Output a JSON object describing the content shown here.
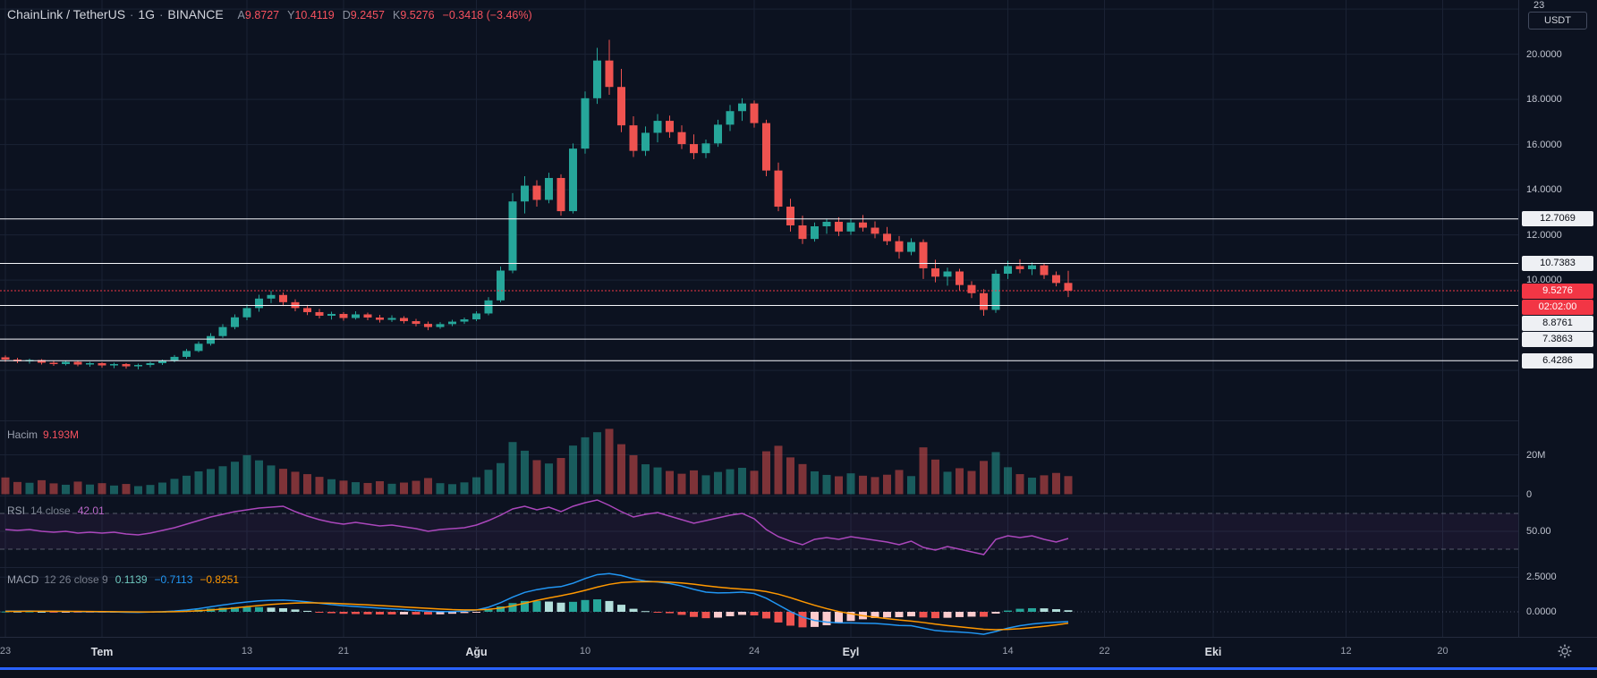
{
  "legend": {
    "symbol": "ChainLink / TetherUS",
    "dot": "·",
    "interval": "1G",
    "exchange": "BINANCE",
    "o_label": "A",
    "o": "9.8727",
    "h_label": "Y",
    "h": "10.4119",
    "l_label": "D",
    "l": "9.2457",
    "c_label": "K",
    "c": "9.5276",
    "change": "−0.3418 (−3.46%)"
  },
  "volume_legend": {
    "label": "Hacim",
    "value": "9.193M"
  },
  "rsi_legend": {
    "label": "RSI",
    "params": "14 close",
    "value": "42.01"
  },
  "macd_legend": {
    "label": "MACD",
    "params": "12 26 close 9",
    "hist": "0.1139",
    "macd": "−0.7113",
    "signal": "−0.8251"
  },
  "price_axis": {
    "top_label": "23",
    "currency": "USDT",
    "ticks": [
      {
        "v": 20,
        "label": "20.0000"
      },
      {
        "v": 18,
        "label": "18.0000"
      },
      {
        "v": 16,
        "label": "16.0000"
      },
      {
        "v": 14,
        "label": "14.0000"
      },
      {
        "v": 12,
        "label": "12.0000"
      },
      {
        "v": 10,
        "label": "10.0000"
      }
    ]
  },
  "sub_axes": {
    "volume": [
      {
        "v": 20,
        "label": "20M"
      },
      {
        "v": 0,
        "label": "0"
      }
    ],
    "rsi": [
      {
        "v": 50,
        "label": "50.00"
      }
    ],
    "macd": [
      {
        "v": 2.5,
        "label": "2.5000"
      },
      {
        "v": 0,
        "label": "0.0000"
      }
    ]
  },
  "colors": {
    "up": "#26a69a",
    "down": "#ef5350",
    "vol_up": "rgba(38,166,154,0.5)",
    "vol_down": "rgba(239,83,80,0.5)",
    "rsi": "#ab47bc",
    "rsi_band_fill": "rgba(171,71,188,0.08)",
    "macd_line": "#2196f3",
    "signal_line": "#ff9800",
    "hist_pos": "#26a69a",
    "hist_pos_weak": "#b2dfdb",
    "hist_neg": "#ef5350",
    "hist_neg_weak": "#fccbcd",
    "level_line": "#f5f6fa",
    "last_price": "#f23645",
    "grid": "#1a2234",
    "blue_strip": "#2962ff"
  },
  "chart_data": {
    "type": "candlestick",
    "title": "ChainLink / TetherUS",
    "exchange": "BINANCE",
    "interval": "1G",
    "note": "OHLCV per bar [open, high, low, close, volume_millions], daily bars Jun 23 - Sep 19",
    "candles": [
      [
        6.58,
        6.66,
        6.38,
        6.48,
        8.5
      ],
      [
        6.48,
        6.56,
        6.32,
        6.4,
        6.2
      ],
      [
        6.4,
        6.52,
        6.3,
        6.46,
        5.8
      ],
      [
        6.46,
        6.5,
        6.26,
        6.34,
        7.1
      ],
      [
        6.34,
        6.44,
        6.2,
        6.28,
        5.5
      ],
      [
        6.28,
        6.42,
        6.22,
        6.38,
        4.8
      ],
      [
        6.38,
        6.42,
        6.18,
        6.26,
        6.4
      ],
      [
        6.26,
        6.38,
        6.16,
        6.32,
        4.9
      ],
      [
        6.32,
        6.36,
        6.12,
        6.22,
        5.6
      ],
      [
        6.22,
        6.34,
        6.1,
        6.28,
        4.4
      ],
      [
        6.28,
        6.32,
        6.08,
        6.18,
        5.2
      ],
      [
        6.18,
        6.3,
        6.05,
        6.24,
        4.1
      ],
      [
        6.24,
        6.38,
        6.14,
        6.32,
        4.7
      ],
      [
        6.32,
        6.48,
        6.24,
        6.42,
        5.9
      ],
      [
        6.42,
        6.68,
        6.36,
        6.6,
        7.8
      ],
      [
        6.6,
        6.95,
        6.52,
        6.86,
        9.4
      ],
      [
        6.86,
        7.28,
        6.8,
        7.18,
        11.6
      ],
      [
        7.18,
        7.65,
        7.1,
        7.52,
        12.8
      ],
      [
        7.52,
        8.05,
        7.44,
        7.92,
        14.2
      ],
      [
        7.92,
        8.48,
        7.82,
        8.35,
        16.5
      ],
      [
        8.35,
        8.92,
        8.22,
        8.76,
        19.8
      ],
      [
        8.76,
        9.35,
        8.6,
        9.18,
        17.2
      ],
      [
        9.18,
        9.52,
        8.98,
        9.34,
        14.6
      ],
      [
        9.34,
        9.45,
        8.85,
        9.02,
        12.9
      ],
      [
        9.02,
        9.15,
        8.62,
        8.76,
        11.4
      ],
      [
        8.76,
        8.9,
        8.45,
        8.58,
        10.2
      ],
      [
        8.58,
        8.72,
        8.3,
        8.42,
        8.8
      ],
      [
        8.42,
        8.6,
        8.25,
        8.5,
        7.6
      ],
      [
        8.5,
        8.58,
        8.2,
        8.32,
        6.9
      ],
      [
        8.32,
        8.62,
        8.25,
        8.48,
        6.1
      ],
      [
        8.48,
        8.56,
        8.22,
        8.34,
        5.7
      ],
      [
        8.34,
        8.46,
        8.12,
        8.24,
        6.6
      ],
      [
        8.24,
        8.44,
        8.15,
        8.32,
        5.3
      ],
      [
        8.32,
        8.4,
        8.08,
        8.18,
        5.9
      ],
      [
        8.18,
        8.28,
        7.95,
        8.06,
        6.8
      ],
      [
        8.06,
        8.16,
        7.78,
        7.92,
        8.2
      ],
      [
        7.92,
        8.14,
        7.84,
        8.05,
        5.6
      ],
      [
        8.05,
        8.24,
        7.96,
        8.16,
        5.1
      ],
      [
        8.16,
        8.34,
        8.06,
        8.26,
        6.0
      ],
      [
        8.26,
        8.62,
        8.18,
        8.52,
        8.6
      ],
      [
        8.52,
        9.24,
        8.44,
        9.1,
        12.4
      ],
      [
        9.1,
        10.6,
        9.02,
        10.42,
        15.8
      ],
      [
        10.42,
        13.85,
        10.3,
        13.48,
        26.5
      ],
      [
        13.48,
        14.6,
        12.95,
        14.18,
        22.1
      ],
      [
        14.18,
        14.42,
        13.25,
        13.55,
        17.3
      ],
      [
        13.55,
        14.75,
        13.4,
        14.52,
        15.6
      ],
      [
        14.52,
        14.68,
        12.85,
        13.05,
        18.4
      ],
      [
        13.05,
        16.05,
        12.95,
        15.82,
        24.7
      ],
      [
        15.82,
        18.35,
        15.6,
        18.05,
        28.9
      ],
      [
        18.05,
        20.28,
        17.8,
        19.72,
        31.5
      ],
      [
        19.72,
        20.64,
        18.2,
        18.55,
        33.2
      ],
      [
        18.55,
        19.35,
        16.55,
        16.85,
        25.4
      ],
      [
        16.85,
        17.25,
        15.45,
        15.72,
        19.8
      ],
      [
        15.72,
        16.8,
        15.5,
        16.52,
        15.2
      ],
      [
        16.52,
        17.35,
        16.1,
        17.05,
        13.6
      ],
      [
        17.05,
        17.28,
        16.3,
        16.55,
        11.8
      ],
      [
        16.55,
        16.85,
        15.8,
        16.02,
        10.4
      ],
      [
        16.02,
        16.45,
        15.35,
        15.62,
        12.1
      ],
      [
        15.62,
        16.22,
        15.4,
        16.05,
        9.6
      ],
      [
        16.05,
        17.1,
        15.9,
        16.88,
        11.3
      ],
      [
        16.88,
        17.75,
        16.6,
        17.48,
        12.7
      ],
      [
        17.48,
        18.05,
        17.05,
        17.82,
        13.4
      ],
      [
        17.82,
        17.95,
        16.75,
        16.95,
        11.9
      ],
      [
        16.95,
        17.1,
        14.6,
        14.85,
        21.8
      ],
      [
        14.85,
        15.2,
        13.05,
        13.25,
        24.6
      ],
      [
        13.25,
        13.6,
        12.15,
        12.42,
        18.7
      ],
      [
        12.42,
        12.85,
        11.6,
        11.82,
        15.3
      ],
      [
        11.82,
        12.55,
        11.7,
        12.38,
        11.6
      ],
      [
        12.38,
        12.72,
        12.05,
        12.58,
        9.8
      ],
      [
        12.58,
        12.78,
        11.95,
        12.15,
        9.1
      ],
      [
        12.15,
        12.72,
        12.0,
        12.55,
        10.6
      ],
      [
        12.55,
        12.88,
        12.15,
        12.32,
        9.4
      ],
      [
        12.32,
        12.6,
        11.85,
        12.05,
        8.7
      ],
      [
        12.05,
        12.35,
        11.55,
        11.72,
        9.9
      ],
      [
        11.72,
        11.95,
        10.95,
        11.25,
        12.3
      ],
      [
        11.25,
        11.85,
        11.1,
        11.68,
        9.2
      ],
      [
        11.68,
        11.8,
        10.05,
        10.52,
        23.8
      ],
      [
        10.52,
        10.9,
        9.9,
        10.15,
        17.6
      ],
      [
        10.15,
        10.55,
        9.75,
        10.38,
        11.4
      ],
      [
        10.38,
        10.5,
        9.55,
        9.78,
        13.2
      ],
      [
        9.78,
        9.95,
        9.2,
        9.42,
        11.8
      ],
      [
        9.42,
        9.6,
        8.42,
        8.68,
        16.9
      ],
      [
        8.68,
        10.45,
        8.55,
        10.28,
        21.4
      ],
      [
        10.28,
        10.85,
        10.05,
        10.62,
        13.7
      ],
      [
        10.62,
        10.92,
        10.3,
        10.48,
        10.2
      ],
      [
        10.48,
        10.78,
        10.22,
        10.65,
        8.4
      ],
      [
        10.65,
        10.74,
        10.05,
        10.22,
        9.6
      ],
      [
        10.22,
        10.38,
        9.72,
        9.87,
        10.8
      ],
      [
        9.8727,
        10.4119,
        9.2457,
        9.5276,
        9.193
      ]
    ],
    "rsi": [
      52,
      51,
      52,
      50,
      49,
      50,
      48,
      49,
      48,
      49,
      47,
      46,
      48,
      51,
      54,
      58,
      62,
      66,
      69,
      72,
      74,
      76,
      77,
      78,
      72,
      67,
      63,
      60,
      58,
      60,
      58,
      56,
      57,
      55,
      53,
      50,
      52,
      53,
      54,
      57,
      62,
      68,
      75,
      78,
      74,
      77,
      72,
      78,
      82,
      85,
      79,
      72,
      66,
      69,
      71,
      67,
      63,
      59,
      62,
      65,
      68,
      70,
      64,
      52,
      44,
      39,
      35,
      41,
      43,
      41,
      44,
      42,
      40,
      38,
      35,
      39,
      32,
      29,
      33,
      30,
      27,
      24,
      41,
      45,
      43,
      45,
      41,
      38,
      42.01
    ],
    "rsi_bands": [
      70,
      30
    ],
    "macd": [
      0.05,
      0.05,
      0.06,
      0.04,
      0.03,
      0.03,
      0.01,
      0.0,
      -0.01,
      -0.01,
      -0.03,
      -0.04,
      -0.02,
      0.01,
      0.06,
      0.13,
      0.23,
      0.36,
      0.49,
      0.61,
      0.71,
      0.79,
      0.83,
      0.85,
      0.8,
      0.72,
      0.62,
      0.52,
      0.44,
      0.38,
      0.32,
      0.26,
      0.21,
      0.16,
      0.1,
      0.05,
      0.02,
      0.02,
      0.05,
      0.13,
      0.33,
      0.66,
      1.06,
      1.4,
      1.6,
      1.74,
      1.82,
      2.06,
      2.4,
      2.68,
      2.76,
      2.62,
      2.38,
      2.22,
      2.15,
      2.04,
      1.86,
      1.62,
      1.42,
      1.36,
      1.38,
      1.42,
      1.32,
      0.98,
      0.5,
      0.02,
      -0.38,
      -0.62,
      -0.74,
      -0.8,
      -0.8,
      -0.82,
      -0.84,
      -0.9,
      -0.98,
      -1.0,
      -1.18,
      -1.35,
      -1.42,
      -1.46,
      -1.52,
      -1.62,
      -1.42,
      -1.18,
      -1.0,
      -0.88,
      -0.8,
      -0.75,
      -0.7113
    ],
    "signal": [
      0.03,
      0.035,
      0.04,
      0.04,
      0.038,
      0.036,
      0.031,
      0.025,
      0.018,
      0.012,
      0.004,
      -0.005,
      -0.008,
      -0.004,
      0.009,
      0.033,
      0.072,
      0.13,
      0.2,
      0.28,
      0.37,
      0.45,
      0.53,
      0.59,
      0.63,
      0.65,
      0.64,
      0.62,
      0.58,
      0.54,
      0.5,
      0.45,
      0.4,
      0.35,
      0.3,
      0.25,
      0.2,
      0.16,
      0.14,
      0.14,
      0.18,
      0.27,
      0.43,
      0.62,
      0.82,
      1.0,
      1.16,
      1.34,
      1.55,
      1.78,
      1.98,
      2.11,
      2.16,
      2.17,
      2.17,
      2.14,
      2.08,
      1.99,
      1.88,
      1.78,
      1.7,
      1.64,
      1.58,
      1.46,
      1.27,
      1.02,
      0.74,
      0.47,
      0.23,
      0.02,
      -0.14,
      -0.28,
      -0.39,
      -0.49,
      -0.59,
      -0.67,
      -0.77,
      -0.89,
      -0.99,
      -1.08,
      -1.17,
      -1.26,
      -1.29,
      -1.27,
      -1.22,
      -1.14,
      -1.05,
      -0.94,
      -0.8251
    ],
    "levels": [
      {
        "v": 12.7069,
        "label": "12.7069"
      },
      {
        "v": 10.7383,
        "label": "10.7383"
      },
      {
        "v": 8.8761,
        "label": "8.8761"
      },
      {
        "v": 7.3863,
        "label": "7.3863"
      },
      {
        "v": 6.4286,
        "label": "6.4286"
      }
    ],
    "last": {
      "v": 9.5276,
      "label": "9.5276",
      "countdown": "02:02:00",
      "direction": "down"
    },
    "x_ticks": [
      {
        "i": 0,
        "label": "23",
        "major": false
      },
      {
        "i": 8,
        "label": "Tem",
        "major": true
      },
      {
        "i": 20,
        "label": "13",
        "major": false
      },
      {
        "i": 28,
        "label": "21",
        "major": false
      },
      {
        "i": 39,
        "label": "Ağu",
        "major": true
      },
      {
        "i": 48,
        "label": "10",
        "major": false
      },
      {
        "i": 62,
        "label": "24",
        "major": false
      },
      {
        "i": 70,
        "label": "Eyl",
        "major": true
      },
      {
        "i": 83,
        "label": "14",
        "major": false
      },
      {
        "i": 91,
        "label": "22",
        "major": false
      },
      {
        "i": 100,
        "label": "Eki",
        "major": true
      },
      {
        "i": 111,
        "label": "12",
        "major": false
      },
      {
        "i": 119,
        "label": "20",
        "major": false
      }
    ]
  }
}
